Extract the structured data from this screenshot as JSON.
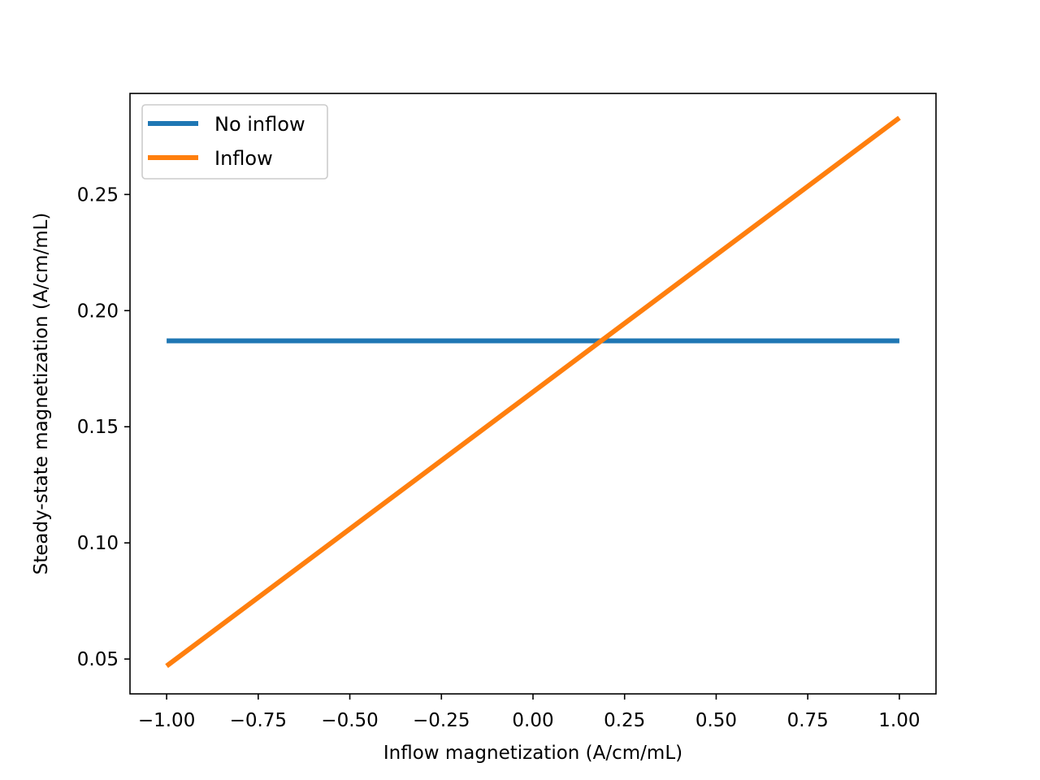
{
  "chart_data": {
    "type": "line",
    "title": "",
    "xlabel": "Inflow magnetization (A/cm/mL)",
    "ylabel": "Steady-state magnetization (A/cm/mL)",
    "xlim": [
      -1.1,
      1.1
    ],
    "ylim": [
      0.035,
      0.2935
    ],
    "xticks": [
      -1.0,
      -0.75,
      -0.5,
      -0.25,
      0.0,
      0.25,
      0.5,
      0.75,
      1.0
    ],
    "xtick_labels": [
      "−1.00",
      "−0.75",
      "−0.50",
      "−0.25",
      "0.00",
      "0.25",
      "0.50",
      "0.75",
      "1.00"
    ],
    "yticks": [
      0.05,
      0.1,
      0.15,
      0.2,
      0.25
    ],
    "ytick_labels": [
      "0.05",
      "0.10",
      "0.15",
      "0.20",
      "0.25"
    ],
    "grid": false,
    "legend_position": "top-left",
    "series": [
      {
        "name": "No inflow",
        "color": "#1f77b4",
        "x": [
          -1.0,
          1.0
        ],
        "y": [
          0.187,
          0.187
        ]
      },
      {
        "name": "Inflow",
        "color": "#ff7f0e",
        "x": [
          -1.0,
          1.0
        ],
        "y": [
          0.047,
          0.283
        ]
      }
    ]
  }
}
